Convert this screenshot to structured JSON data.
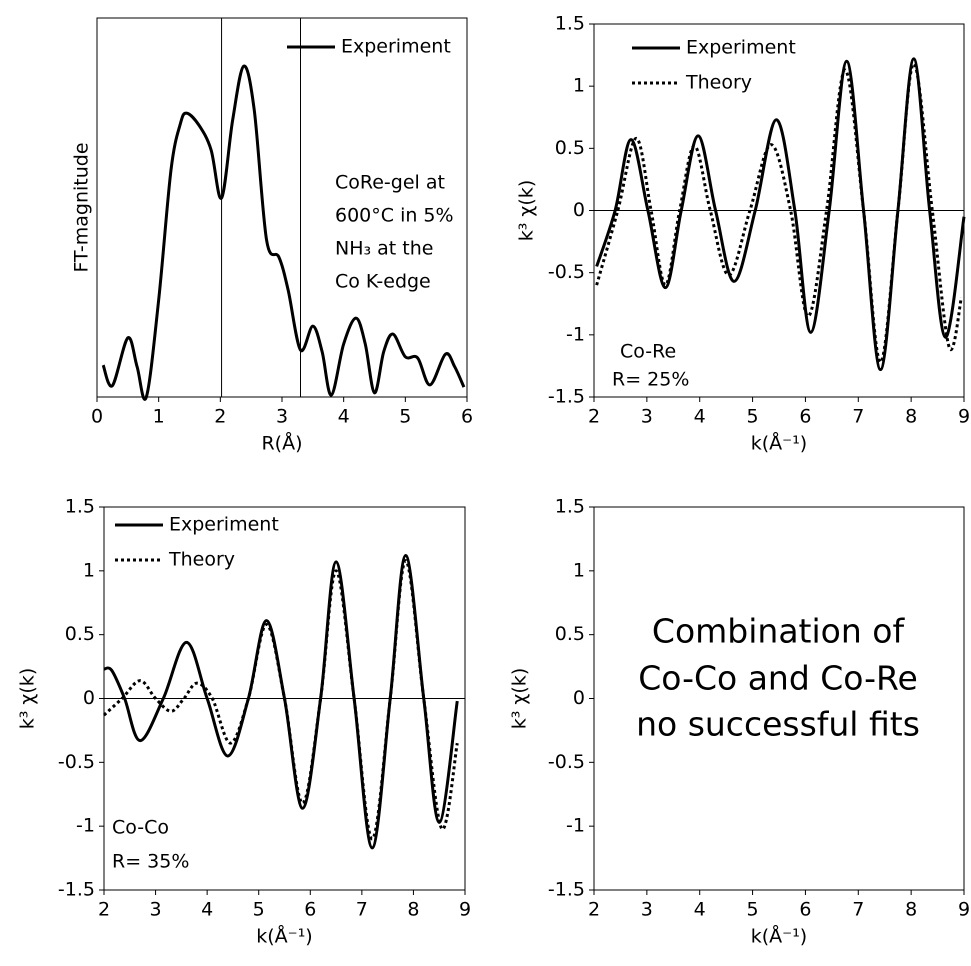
{
  "chart_data": [
    {
      "type": "line",
      "xlabel": "R(Å)",
      "ylabel": "FT-magnitude",
      "xlim": [
        0,
        6
      ],
      "xticks": [
        0,
        1,
        2,
        3,
        4,
        5,
        6
      ],
      "ylim": [
        0,
        1
      ],
      "vlines": [
        2.02,
        3.3
      ],
      "legend": "upper right",
      "annotations": [
        "CoRe-gel at",
        "600°C in 5%",
        "NH₃ at the",
        "Co K-edge"
      ],
      "series": [
        {
          "name": "Experiment",
          "color": "#000000",
          "style": "solid",
          "x": [
            0.1,
            0.25,
            0.5,
            0.65,
            0.8,
            1.0,
            1.2,
            1.35,
            1.45,
            1.65,
            1.85,
            2.02,
            2.2,
            2.38,
            2.55,
            2.75,
            2.95,
            3.1,
            3.3,
            3.5,
            3.65,
            3.8,
            4.0,
            4.2,
            4.35,
            4.5,
            4.65,
            4.8,
            5.0,
            5.2,
            5.4,
            5.65,
            5.8,
            5.95
          ],
          "values": [
            0.084,
            0.03,
            0.156,
            0.08,
            0.0,
            0.256,
            0.599,
            0.72,
            0.749,
            0.718,
            0.652,
            0.525,
            0.731,
            0.873,
            0.757,
            0.414,
            0.369,
            0.282,
            0.124,
            0.187,
            0.12,
            0.005,
            0.14,
            0.208,
            0.14,
            0.011,
            0.12,
            0.166,
            0.106,
            0.103,
            0.032,
            0.113,
            0.08,
            0.026
          ]
        }
      ]
    },
    {
      "type": "line",
      "xlabel": "k(Å⁻¹)",
      "ylabel": "k³ χ(k)",
      "xlim": [
        2,
        9
      ],
      "xticks": [
        2,
        3,
        4,
        5,
        6,
        7,
        8,
        9
      ],
      "ylim": [
        -1.5,
        1.5
      ],
      "yticks": [
        -1.5,
        -1,
        -0.5,
        0,
        0.5,
        1,
        1.5
      ],
      "zero_line": true,
      "legend": "upper left",
      "annotations": [
        "Co-Re",
        "R= 25%"
      ],
      "series": [
        {
          "name": "Experiment",
          "color": "#000000",
          "style": "solid",
          "x": [
            2.05,
            2.4,
            2.7,
            3.02,
            3.35,
            3.65,
            3.97,
            4.3,
            4.65,
            5.05,
            5.45,
            5.8,
            6.1,
            6.45,
            6.78,
            7.1,
            7.42,
            7.75,
            8.05,
            8.35,
            8.65,
            9.0
          ],
          "values": [
            -0.45,
            0,
            0.57,
            0,
            -0.62,
            0,
            0.6,
            0,
            -0.57,
            0,
            0.73,
            0,
            -0.98,
            0,
            1.2,
            0,
            -1.28,
            0,
            1.22,
            0,
            -1.02,
            -0.05
          ]
        },
        {
          "name": "Theory",
          "color": "#000000",
          "style": "dotted",
          "x": [
            2.05,
            2.45,
            2.8,
            3.08,
            3.35,
            3.62,
            3.9,
            4.2,
            4.55,
            4.95,
            5.35,
            5.72,
            6.05,
            6.4,
            6.75,
            7.1,
            7.42,
            7.75,
            8.05,
            8.4,
            8.72,
            8.95
          ],
          "values": [
            -0.6,
            0,
            0.58,
            0,
            -0.6,
            0,
            0.52,
            0,
            -0.52,
            0,
            0.53,
            0,
            -0.85,
            0,
            1.13,
            0,
            -1.22,
            0,
            1.18,
            0,
            -1.1,
            -0.7
          ]
        }
      ]
    },
    {
      "type": "line",
      "xlabel": "k(Å⁻¹)",
      "ylabel": "k³ χ(k)",
      "xlim": [
        2,
        9
      ],
      "xticks": [
        2,
        3,
        4,
        5,
        6,
        7,
        8,
        9
      ],
      "ylim": [
        -1.5,
        1.5
      ],
      "yticks": [
        -1.5,
        -1,
        -0.5,
        0,
        0.5,
        1,
        1.5
      ],
      "zero_line": true,
      "legend": "upper left",
      "annotations": [
        "Co-Co",
        "R= 35%"
      ],
      "series": [
        {
          "name": "Experiment",
          "color": "#000000",
          "style": "solid",
          "x": [
            2.0,
            2.15,
            2.4,
            2.7,
            3.15,
            3.6,
            4.0,
            4.4,
            4.8,
            5.15,
            5.5,
            5.85,
            6.2,
            6.5,
            6.85,
            7.2,
            7.55,
            7.85,
            8.2,
            8.5,
            8.85
          ],
          "values": [
            0.23,
            0.22,
            0,
            -0.33,
            0,
            0.44,
            0,
            -0.45,
            0,
            0.61,
            0,
            -0.86,
            0,
            1.07,
            0,
            -1.17,
            0,
            1.12,
            0,
            -0.97,
            -0.02
          ]
        },
        {
          "name": "Theory",
          "color": "#000000",
          "style": "dotted",
          "x": [
            2.0,
            2.35,
            2.7,
            3.0,
            3.3,
            3.55,
            3.8,
            4.1,
            4.45,
            4.8,
            5.15,
            5.5,
            5.85,
            6.2,
            6.5,
            6.85,
            7.2,
            7.55,
            7.85,
            8.2,
            8.55,
            8.85
          ],
          "values": [
            -0.13,
            0,
            0.14,
            0,
            -0.1,
            0,
            0.12,
            0,
            -0.35,
            0,
            0.58,
            0,
            -0.82,
            0,
            1.0,
            0,
            -1.1,
            0,
            1.08,
            0,
            -1.02,
            -0.35
          ]
        }
      ]
    },
    {
      "type": "empty",
      "xlabel": "k(Å⁻¹)",
      "ylabel": "k³ χ(k)",
      "xlim": [
        2,
        9
      ],
      "xticks": [
        2,
        3,
        4,
        5,
        6,
        7,
        8,
        9
      ],
      "ylim": [
        -1.5,
        1.5
      ],
      "yticks": [
        -1.5,
        -1,
        -0.5,
        0,
        0.5,
        1,
        1.5
      ],
      "annotations": [
        "Combination of",
        "Co-Co and Co-Re",
        "no successful fits"
      ]
    }
  ]
}
